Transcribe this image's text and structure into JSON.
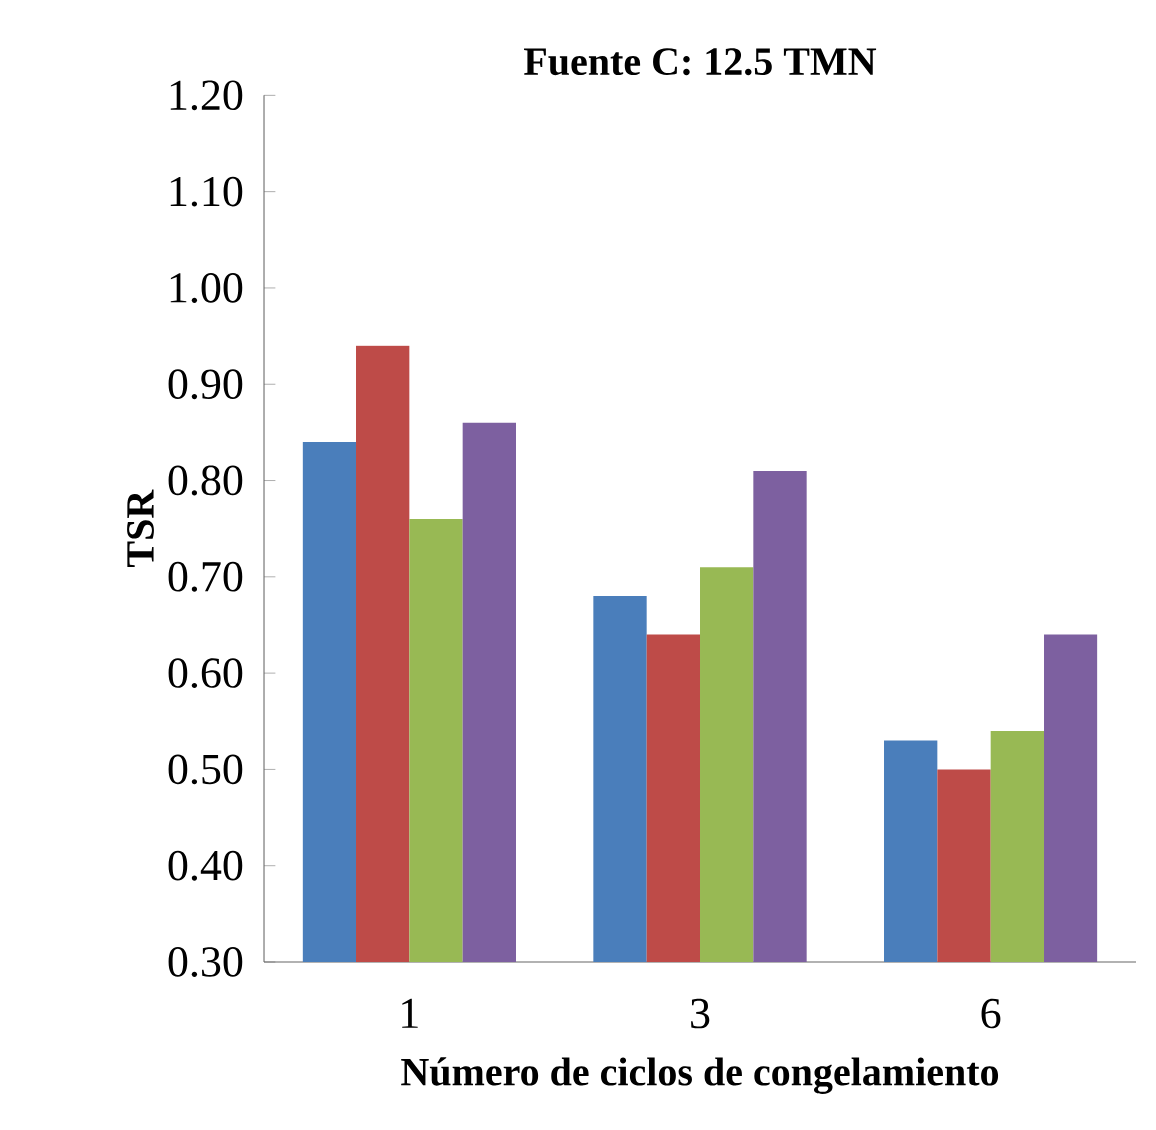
{
  "chart_data": {
    "type": "bar",
    "title": "Fuente C: 12.5 TMN",
    "xlabel": "Número de ciclos de congelamiento",
    "ylabel": "TSR",
    "categories": [
      "1",
      "3",
      "6"
    ],
    "series": [
      {
        "color": "#4a7ebb",
        "values": [
          0.84,
          0.68,
          0.53
        ]
      },
      {
        "color": "#be4b48",
        "values": [
          0.94,
          0.64,
          0.5
        ]
      },
      {
        "color": "#98b954",
        "values": [
          0.76,
          0.71,
          0.54
        ]
      },
      {
        "color": "#7d60a0",
        "values": [
          0.86,
          0.81,
          0.64
        ]
      }
    ],
    "ylim": [
      0.3,
      1.2
    ],
    "yticks": [
      {
        "value": 0.3,
        "label": "0.30"
      },
      {
        "value": 0.4,
        "label": "0.40"
      },
      {
        "value": 0.5,
        "label": "0.50"
      },
      {
        "value": 0.6,
        "label": "0.60"
      },
      {
        "value": 0.7,
        "label": "0.70"
      },
      {
        "value": 0.8,
        "label": "0.80"
      },
      {
        "value": 0.9,
        "label": "0.90"
      },
      {
        "value": 1.0,
        "label": "1.00"
      },
      {
        "value": 1.1,
        "label": "1.10"
      },
      {
        "value": 1.2,
        "label": "1.20"
      }
    ]
  }
}
